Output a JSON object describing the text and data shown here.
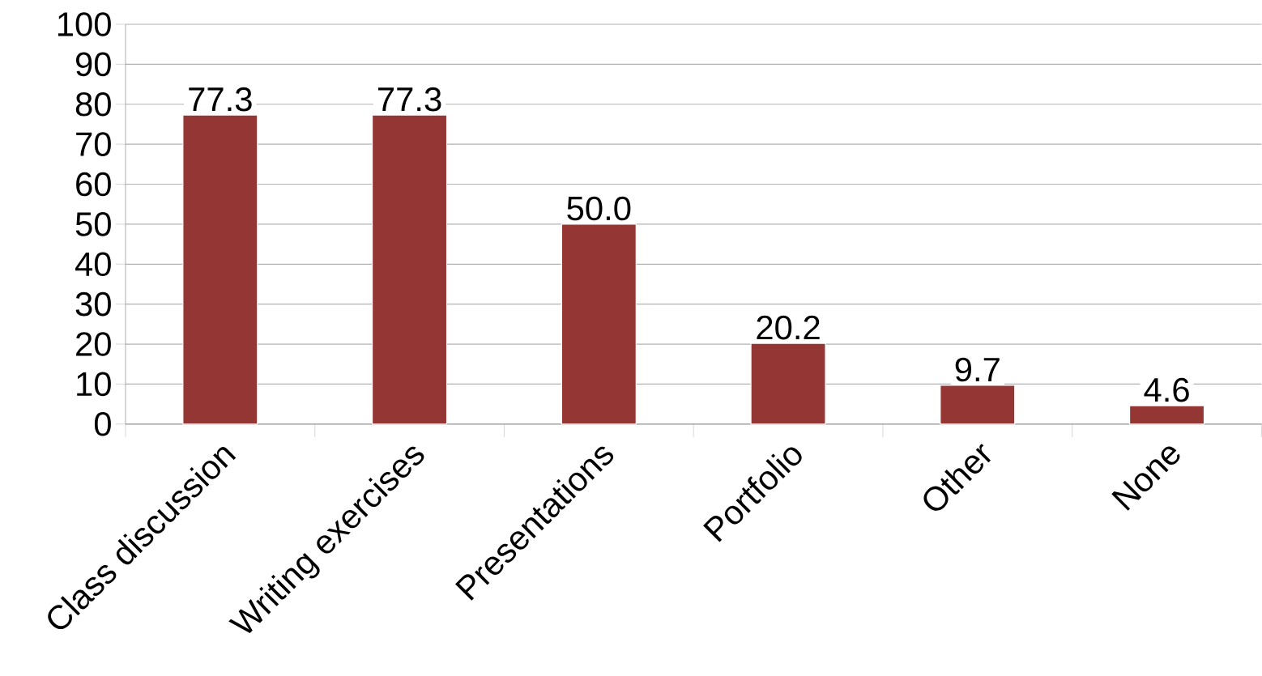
{
  "chart_data": {
    "type": "bar",
    "categories": [
      "Class discussion",
      "Writing exercises",
      "Presentations",
      "Portfolio",
      "Other",
      "None"
    ],
    "values": [
      77.3,
      77.3,
      50.0,
      20.2,
      9.7,
      4.6
    ],
    "value_labels": [
      "77.3",
      "77.3",
      "50.0",
      "20.2",
      "9.7",
      "4.6"
    ],
    "color": "#943634",
    "ylim": [
      0,
      100
    ],
    "yticks": [
      0,
      10,
      20,
      30,
      40,
      50,
      60,
      70,
      80,
      90,
      100
    ],
    "grid": "y"
  }
}
